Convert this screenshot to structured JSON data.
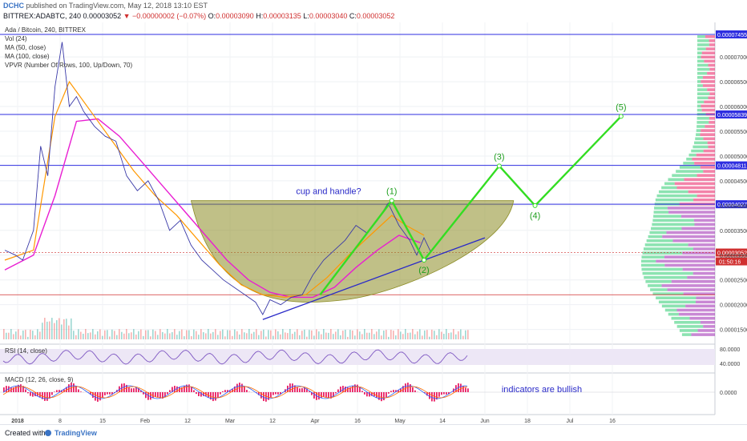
{
  "header": {
    "publisher": "DCHC",
    "published_text": "published on TradingView.com, May 12, 2018 13:10 EST",
    "symbol_line": "BITTREX:ADABTC, 240",
    "last": "0.00003052",
    "change": "▼ −0.00000002 (−0.07%)",
    "o_label": "O:",
    "o": "0.00003090",
    "h_label": "H:",
    "h": "0.00003135",
    "l_label": "L:",
    "l": "0.00003040",
    "c_label": "C:",
    "c": "0.00003052"
  },
  "legend": {
    "title": "Ada / Bitcoin, 240, BITTREX",
    "items": [
      "Vol (24)",
      "MA (50, close)",
      "MA (100, close)",
      "VPVR (Number Of Rows, 100, Up/Down, 70)"
    ],
    "rsi": "RSI (14, close)",
    "macd": "MACD (12, 26, close, 9)"
  },
  "annotations": {
    "pattern": "cup and handle?",
    "indicators": "indicators are bullish",
    "waves": [
      "(1)",
      "(2)",
      "(3)",
      "(4)",
      "(5)"
    ]
  },
  "footer": {
    "created_with": "Created with",
    "brand": "TradingView"
  },
  "colors": {
    "price": "#3a3aa8",
    "ma50": "#ff9800",
    "ma100": "#e91ed2",
    "cup": "#8c8c24",
    "wave": "#33dd22",
    "trendline": "#2a2ac8",
    "hline": "#2e2ee0",
    "support": "#d03030",
    "macd_hist": "#e91e63",
    "rsi": "#7e57c2",
    "vpvr_up": "#2ecc71",
    "vpvr_down": "#e91e63"
  },
  "chart_data": {
    "type": "line",
    "x_ticks": [
      "2018",
      "8",
      "15",
      "Feb",
      "12",
      "Mar",
      "12",
      "Apr",
      "16",
      "May",
      "14",
      "Jun",
      "18",
      "Jul",
      "16"
    ],
    "y_ticks": [
      1.5e-05,
      2e-05,
      2.5e-05,
      3e-05,
      3.5e-05,
      4e-05,
      4.5e-05,
      5e-05,
      5.5e-05,
      6e-05,
      6.5e-05,
      7e-05
    ],
    "ylim": [
      1.3e-05,
      7.6e-05
    ],
    "price_labels": [
      "0.00007455",
      "0.00005839",
      "0.00004811",
      "0.00004027",
      "0.00003052"
    ],
    "countdown": "01:50:16",
    "horizontal_lines": [
      7.455e-05,
      5.839e-05,
      4.811e-05,
      4.027e-05
    ],
    "support_line": 2.2e-05,
    "price_series": [
      [
        0,
        3.1
      ],
      [
        3,
        3.0
      ],
      [
        5,
        2.9
      ],
      [
        8,
        3.5
      ],
      [
        10,
        5.2
      ],
      [
        12,
        4.6
      ],
      [
        14,
        6.4
      ],
      [
        16,
        7.3
      ],
      [
        18,
        6.0
      ],
      [
        20,
        6.2
      ],
      [
        22,
        5.9
      ],
      [
        25,
        5.6
      ],
      [
        28,
        5.4
      ],
      [
        31,
        5.3
      ],
      [
        34,
        4.6
      ],
      [
        37,
        4.3
      ],
      [
        40,
        4.5
      ],
      [
        43,
        4.1
      ],
      [
        46,
        3.5
      ],
      [
        49,
        3.7
      ],
      [
        52,
        3.2
      ],
      [
        55,
        2.9
      ],
      [
        58,
        2.7
      ],
      [
        61,
        2.5
      ],
      [
        64,
        2.35
      ],
      [
        67,
        2.2
      ],
      [
        70,
        2.05
      ],
      [
        72,
        1.8
      ],
      [
        74,
        2.1
      ],
      [
        77,
        2.0
      ],
      [
        80,
        2.15
      ],
      [
        83,
        2.2
      ],
      [
        86,
        2.6
      ],
      [
        89,
        2.9
      ],
      [
        92,
        3.1
      ],
      [
        95,
        3.3
      ],
      [
        98,
        3.6
      ],
      [
        101,
        3.45
      ],
      [
        104,
        3.7
      ],
      [
        107,
        4.05
      ],
      [
        110,
        3.6
      ],
      [
        113,
        3.3
      ],
      [
        115,
        3.0
      ],
      [
        117,
        3.35
      ],
      [
        119,
        3.05
      ]
    ],
    "ma50_series": [
      [
        0,
        2.9
      ],
      [
        8,
        3.1
      ],
      [
        14,
        5.8
      ],
      [
        18,
        6.5
      ],
      [
        24,
        5.9
      ],
      [
        30,
        5.3
      ],
      [
        36,
        4.7
      ],
      [
        42,
        4.2
      ],
      [
        48,
        3.8
      ],
      [
        54,
        3.3
      ],
      [
        60,
        2.8
      ],
      [
        66,
        2.4
      ],
      [
        72,
        2.2
      ],
      [
        78,
        2.15
      ],
      [
        84,
        2.2
      ],
      [
        90,
        2.55
      ],
      [
        96,
        3.0
      ],
      [
        102,
        3.4
      ],
      [
        108,
        3.8
      ],
      [
        112,
        3.6
      ],
      [
        117,
        3.4
      ]
    ],
    "ma100_series": [
      [
        0,
        2.7
      ],
      [
        8,
        3.0
      ],
      [
        14,
        4.2
      ],
      [
        20,
        5.7
      ],
      [
        26,
        5.75
      ],
      [
        32,
        5.4
      ],
      [
        38,
        4.9
      ],
      [
        44,
        4.4
      ],
      [
        50,
        3.9
      ],
      [
        56,
        3.4
      ],
      [
        62,
        2.9
      ],
      [
        68,
        2.5
      ],
      [
        74,
        2.25
      ],
      [
        80,
        2.15
      ],
      [
        86,
        2.15
      ],
      [
        92,
        2.35
      ],
      [
        98,
        2.75
      ],
      [
        104,
        3.1
      ],
      [
        110,
        3.4
      ],
      [
        116,
        3.25
      ]
    ],
    "wave_path": [
      [
        88,
        2.2
      ],
      [
        108,
        4.1
      ],
      [
        117,
        2.9
      ],
      [
        138,
        4.8
      ],
      [
        148,
        4.0
      ],
      [
        172,
        5.8
      ]
    ],
    "trendline": [
      [
        72,
        1.7
      ],
      [
        134,
        3.35
      ]
    ],
    "cup_level": 4.1e-05,
    "rsi_ticks": [
      "80.0000",
      "40.0000"
    ],
    "macd_ticks": [
      "0.0000"
    ]
  }
}
